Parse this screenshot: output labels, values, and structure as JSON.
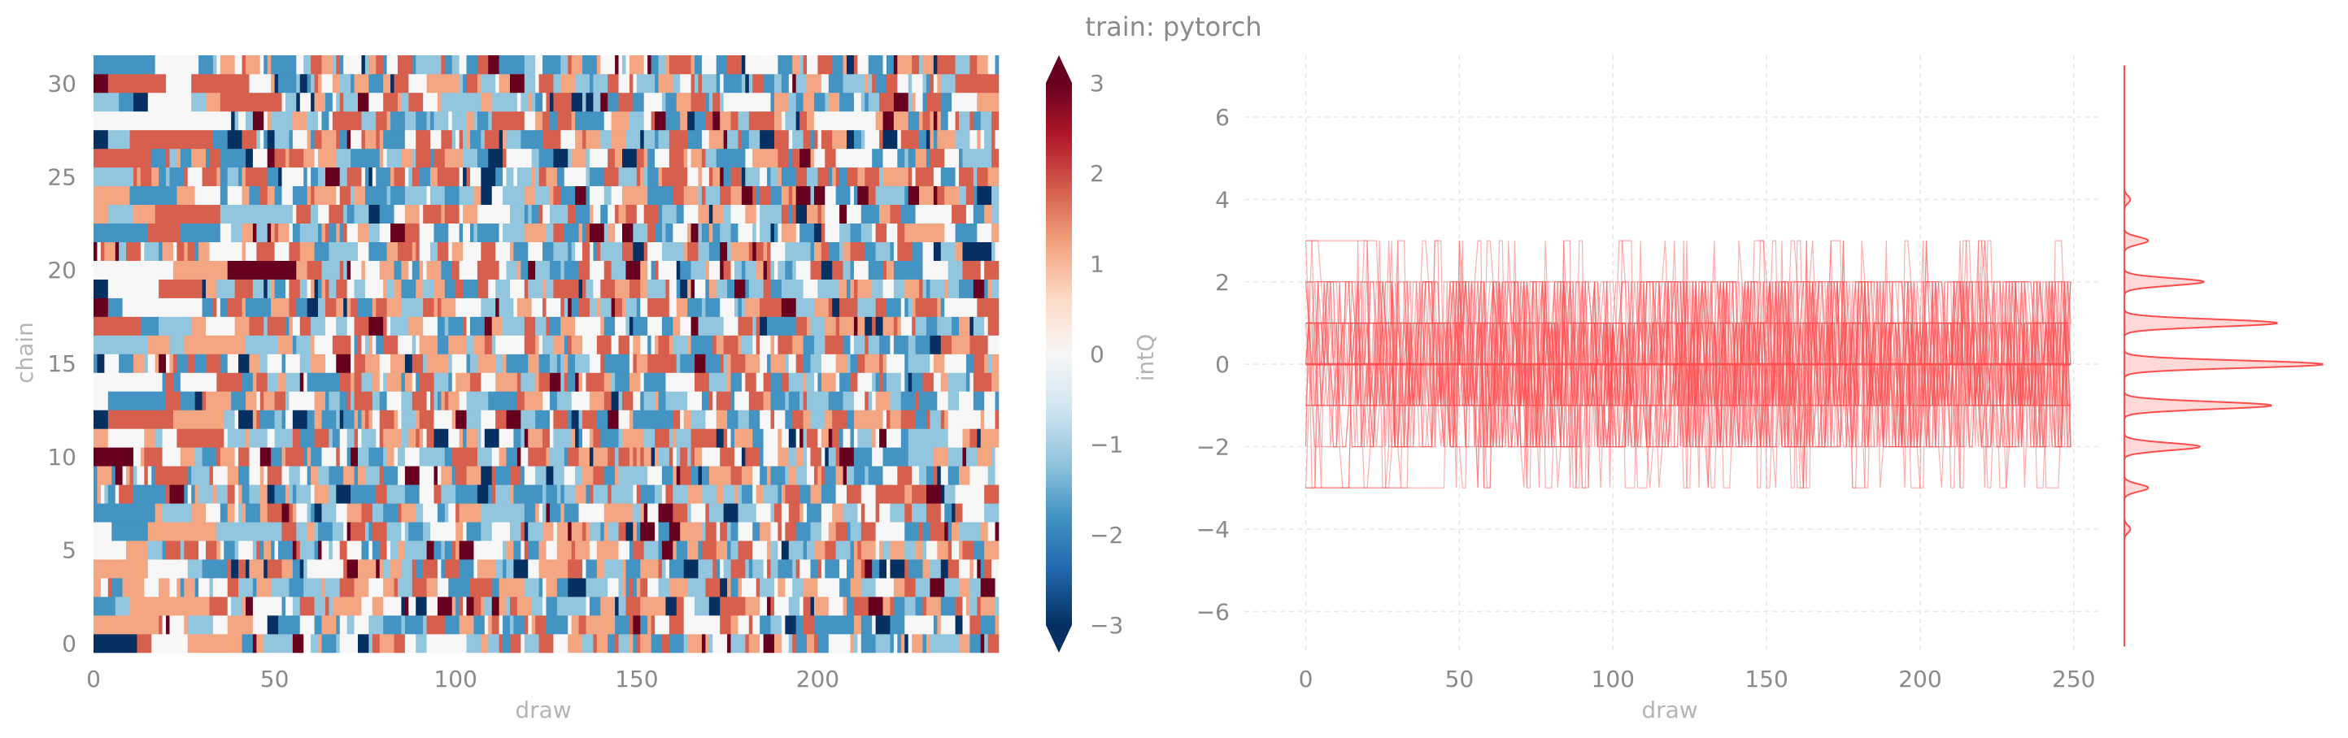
{
  "title": "train: pytorch",
  "chart_data": [
    {
      "type": "heatmap",
      "xlabel": "draw",
      "ylabel": "chain",
      "xlim": [
        0,
        250
      ],
      "ylim": [
        -0.5,
        31.5
      ],
      "xticks": [
        0,
        50,
        100,
        150,
        200
      ],
      "yticks": [
        0,
        5,
        10,
        15,
        20,
        25,
        30
      ],
      "n_chains": 32,
      "n_draws": 250,
      "colorbar": {
        "label": "intQ",
        "range": [
          -3,
          3
        ],
        "ticks": [
          -3,
          -2,
          -1,
          0,
          1,
          2,
          3
        ],
        "tick_labels": [
          "−3",
          "−2",
          "−1",
          "0",
          "1",
          "2",
          "3"
        ],
        "colormap": "RdBu_r",
        "colors": [
          "#053061",
          "#2166ac",
          "#4393c3",
          "#92c5de",
          "#d1e5f0",
          "#f7f7f7",
          "#fddbc7",
          "#f4a582",
          "#d6604d",
          "#b2182b",
          "#67001f"
        ]
      },
      "note_values": "integer intQ values in [-3, 3] per chain/draw; long constant runs in early draws for several chains"
    },
    {
      "type": "line",
      "xlabel": "draw",
      "xlim": [
        -20,
        258
      ],
      "ylim": [
        -7,
        7.5
      ],
      "xticks": [
        0,
        50,
        100,
        150,
        200,
        250
      ],
      "yticks": [
        6,
        4,
        2,
        0,
        -2,
        -4,
        -6
      ],
      "ytick_labels": [
        "6",
        "4",
        "2",
        "0",
        "−2",
        "−4",
        "−6"
      ],
      "n_traces": 32,
      "n_draws": 250,
      "trace_color": "#ff4d4d",
      "grid": true,
      "mean_line": 0.0,
      "trace_range": [
        -5,
        5
      ],
      "marginal_density": {
        "type": "kde",
        "values": [
          -4,
          -3,
          -2,
          -1,
          0,
          1,
          2,
          3,
          4
        ],
        "relative_heights": [
          0.03,
          0.12,
          0.38,
          0.74,
          1.0,
          0.77,
          0.4,
          0.12,
          0.03
        ],
        "color": "#ff4d4d"
      }
    }
  ]
}
